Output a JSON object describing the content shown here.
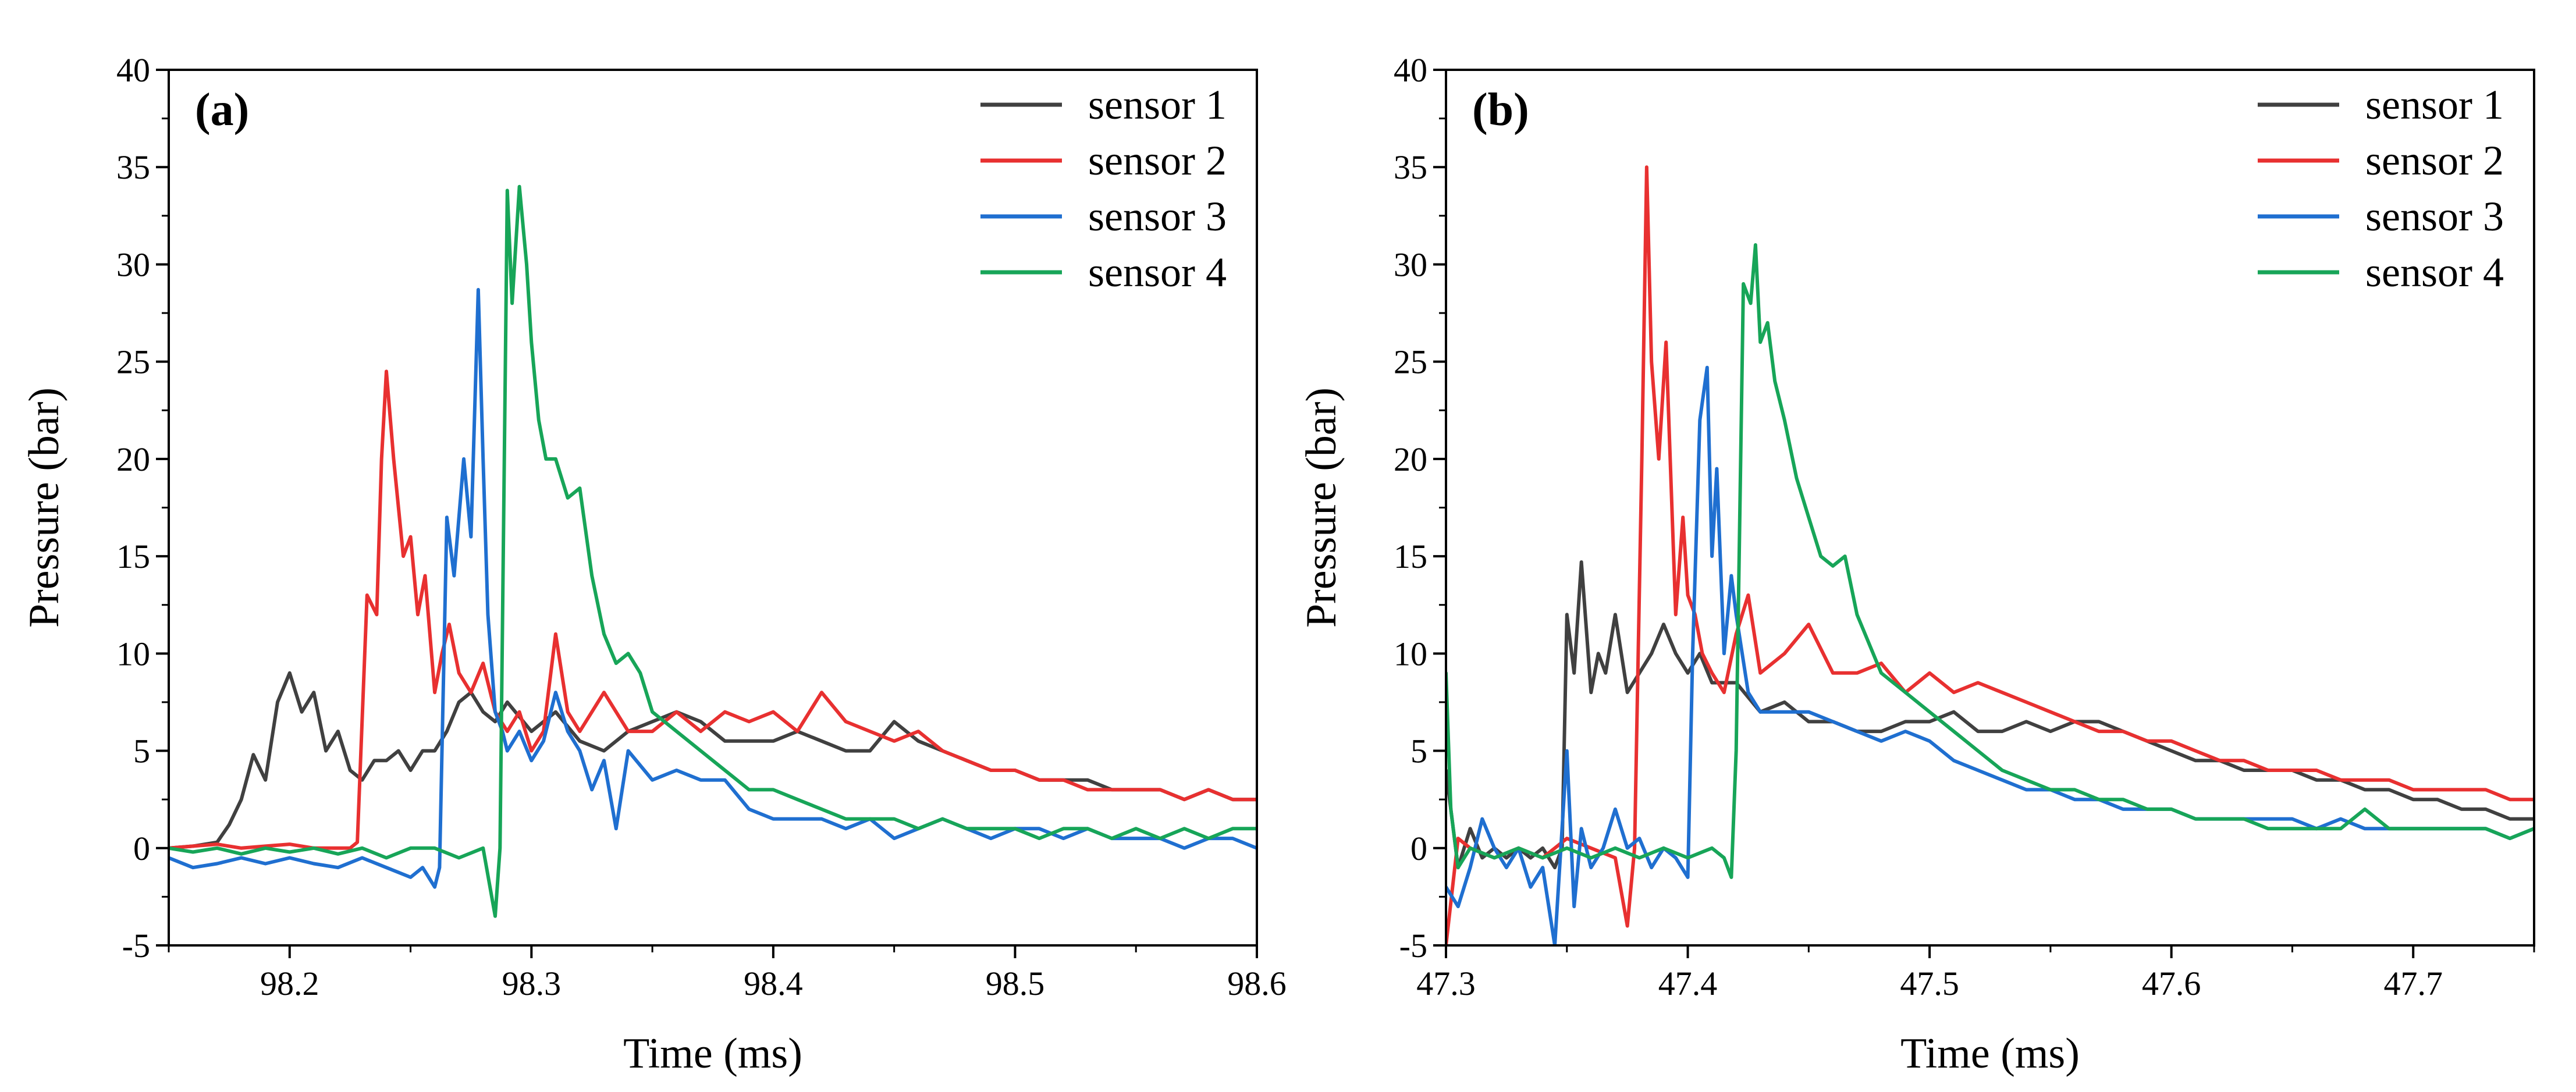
{
  "chart_data": [
    {
      "type": "line",
      "panel_label": "(a)",
      "xlabel": "Time (ms)",
      "ylabel": "Pressure (bar)",
      "xlim": [
        98.15,
        98.6
      ],
      "ylim": [
        -5,
        40
      ],
      "xticks": [
        98.2,
        98.3,
        98.4,
        98.5,
        98.6
      ],
      "xtick_labels": [
        "98.2",
        "98.3",
        "98.4",
        "98.5",
        "98.6"
      ],
      "yticks": [
        -5,
        0,
        5,
        10,
        15,
        20,
        25,
        30,
        35,
        40
      ],
      "ytick_labels": [
        "-5",
        "0",
        "5",
        "10",
        "15",
        "20",
        "25",
        "30",
        "35",
        "40"
      ],
      "legend_position": "top-right",
      "grid": false,
      "series": [
        {
          "name": "sensor 1",
          "color": "#404040",
          "x": [
            98.15,
            98.16,
            98.17,
            98.175,
            98.18,
            98.185,
            98.19,
            98.195,
            98.2,
            98.205,
            98.21,
            98.215,
            98.22,
            98.225,
            98.23,
            98.235,
            98.24,
            98.245,
            98.25,
            98.255,
            98.26,
            98.265,
            98.27,
            98.275,
            98.28,
            98.285,
            98.29,
            98.3,
            98.31,
            98.32,
            98.33,
            98.34,
            98.35,
            98.36,
            98.37,
            98.38,
            98.39,
            98.4,
            98.41,
            98.42,
            98.43,
            98.44,
            98.45,
            98.46,
            98.47,
            98.48,
            98.49,
            98.5,
            98.51,
            98.52,
            98.53,
            98.54,
            98.55,
            98.56,
            98.57,
            98.58,
            98.59,
            98.6
          ],
          "y": [
            0,
            0.1,
            0.3,
            1.2,
            2.5,
            4.8,
            3.5,
            7.5,
            9,
            7,
            8,
            5,
            6,
            4,
            3.5,
            4.5,
            4.5,
            5,
            4,
            5,
            5,
            6,
            7.5,
            8,
            7,
            6.5,
            7.5,
            6,
            7,
            5.5,
            5,
            6,
            6.5,
            7,
            6.5,
            5.5,
            5.5,
            5.5,
            6,
            5.5,
            5,
            5,
            6.5,
            5.5,
            5,
            4.5,
            4,
            4,
            3.5,
            3.5,
            3.5,
            3,
            3,
            3,
            2.5,
            3,
            2.5,
            2.5
          ]
        },
        {
          "name": "sensor 2",
          "color": "#e83030",
          "x": [
            98.15,
            98.16,
            98.17,
            98.18,
            98.19,
            98.2,
            98.21,
            98.22,
            98.225,
            98.228,
            98.232,
            98.236,
            98.238,
            98.24,
            98.243,
            98.247,
            98.25,
            98.253,
            98.256,
            98.26,
            98.263,
            98.266,
            98.27,
            98.275,
            98.28,
            98.285,
            98.29,
            98.295,
            98.3,
            98.305,
            98.31,
            98.315,
            98.32,
            98.33,
            98.34,
            98.35,
            98.36,
            98.37,
            98.38,
            98.39,
            98.4,
            98.41,
            98.42,
            98.43,
            98.44,
            98.45,
            98.46,
            98.47,
            98.48,
            98.49,
            98.5,
            98.51,
            98.52,
            98.53,
            98.54,
            98.55,
            98.56,
            98.57,
            98.58,
            98.59,
            98.6
          ],
          "y": [
            0,
            0.1,
            0.2,
            0,
            0.1,
            0.2,
            0,
            0,
            0,
            0.3,
            13,
            12,
            20,
            24.5,
            20,
            15,
            16,
            12,
            14,
            8,
            10,
            11.5,
            9,
            8,
            9.5,
            7,
            6,
            7,
            5,
            6,
            11,
            7,
            6,
            8,
            6,
            6,
            7,
            6,
            7,
            6.5,
            7,
            6,
            8,
            6.5,
            6,
            5.5,
            6,
            5,
            4.5,
            4,
            4,
            3.5,
            3.5,
            3,
            3,
            3,
            3,
            2.5,
            3,
            2.5,
            2.5
          ]
        },
        {
          "name": "sensor 3",
          "color": "#1f6fd0",
          "x": [
            98.15,
            98.16,
            98.17,
            98.18,
            98.19,
            98.2,
            98.21,
            98.22,
            98.23,
            98.24,
            98.25,
            98.255,
            98.26,
            98.262,
            98.265,
            98.268,
            98.27,
            98.272,
            98.275,
            98.278,
            98.28,
            98.282,
            98.285,
            98.288,
            98.29,
            98.295,
            98.3,
            98.305,
            98.31,
            98.315,
            98.32,
            98.325,
            98.33,
            98.335,
            98.34,
            98.35,
            98.36,
            98.37,
            98.38,
            98.39,
            98.4,
            98.41,
            98.42,
            98.43,
            98.44,
            98.45,
            98.46,
            98.47,
            98.48,
            98.49,
            98.5,
            98.51,
            98.52,
            98.53,
            98.54,
            98.55,
            98.56,
            98.57,
            98.58,
            98.59,
            98.6
          ],
          "y": [
            -0.5,
            -1,
            -0.8,
            -0.5,
            -0.8,
            -0.5,
            -0.8,
            -1,
            -0.5,
            -1,
            -1.5,
            -1,
            -2,
            -1,
            17,
            14,
            17,
            20,
            16,
            28.7,
            20,
            12,
            7,
            6,
            5,
            6,
            4.5,
            5.5,
            8,
            6,
            5,
            3,
            4.5,
            1,
            5,
            3.5,
            4,
            3.5,
            3.5,
            2,
            1.5,
            1.5,
            1.5,
            1,
            1.5,
            0.5,
            1,
            1.5,
            1,
            0.5,
            1,
            1,
            0.5,
            1,
            0.5,
            0.5,
            0.5,
            0,
            0.5,
            0.5,
            0
          ]
        },
        {
          "name": "sensor 4",
          "color": "#17a558",
          "x": [
            98.15,
            98.16,
            98.17,
            98.18,
            98.19,
            98.2,
            98.21,
            98.22,
            98.23,
            98.24,
            98.25,
            98.26,
            98.27,
            98.28,
            98.285,
            98.287,
            98.29,
            98.292,
            98.295,
            98.298,
            98.3,
            98.303,
            98.306,
            98.31,
            98.315,
            98.32,
            98.325,
            98.33,
            98.335,
            98.34,
            98.345,
            98.35,
            98.36,
            98.37,
            98.38,
            98.39,
            98.4,
            98.41,
            98.42,
            98.43,
            98.44,
            98.45,
            98.46,
            98.47,
            98.48,
            98.49,
            98.5,
            98.51,
            98.52,
            98.53,
            98.54,
            98.55,
            98.56,
            98.57,
            98.58,
            98.59,
            98.6
          ],
          "y": [
            0,
            -0.2,
            0,
            -0.3,
            0,
            -0.2,
            0,
            -0.3,
            0,
            -0.5,
            0,
            0,
            -0.5,
            0,
            -3.5,
            0,
            33.8,
            28,
            34,
            30,
            26,
            22,
            20,
            20,
            18,
            18.5,
            14,
            11,
            9.5,
            10,
            9,
            7,
            6,
            5,
            4,
            3,
            3,
            2.5,
            2,
            1.5,
            1.5,
            1.5,
            1,
            1.5,
            1,
            1,
            1,
            0.5,
            1,
            1,
            0.5,
            1,
            0.5,
            1,
            0.5,
            1,
            1
          ]
        }
      ]
    },
    {
      "type": "line",
      "panel_label": "(b)",
      "xlabel": "Time (ms)",
      "ylabel": "Pressure (bar)",
      "xlim": [
        47.3,
        47.75
      ],
      "ylim": [
        -5,
        40
      ],
      "xticks": [
        47.3,
        47.4,
        47.5,
        47.6,
        47.7
      ],
      "xtick_labels": [
        "47.3",
        "47.4",
        "47.5",
        "47.6",
        "47.7"
      ],
      "yticks": [
        -5,
        0,
        5,
        10,
        15,
        20,
        25,
        30,
        35,
        40
      ],
      "ytick_labels": [
        "-5",
        "0",
        "5",
        "10",
        "15",
        "20",
        "25",
        "30",
        "35",
        "40"
      ],
      "legend_position": "top-right",
      "grid": false,
      "series": [
        {
          "name": "sensor 1",
          "color": "#404040",
          "x": [
            47.3,
            47.305,
            47.31,
            47.315,
            47.32,
            47.325,
            47.33,
            47.335,
            47.34,
            47.345,
            47.348,
            47.35,
            47.353,
            47.356,
            47.36,
            47.363,
            47.366,
            47.37,
            47.375,
            47.38,
            47.385,
            47.39,
            47.395,
            47.4,
            47.405,
            47.41,
            47.42,
            47.43,
            47.44,
            47.45,
            47.46,
            47.47,
            47.48,
            47.49,
            47.5,
            47.51,
            47.52,
            47.53,
            47.54,
            47.55,
            47.56,
            47.57,
            47.58,
            47.59,
            47.6,
            47.61,
            47.62,
            47.63,
            47.64,
            47.65,
            47.66,
            47.67,
            47.68,
            47.69,
            47.7,
            47.71,
            47.72,
            47.73,
            47.74,
            47.75
          ],
          "y": [
            4,
            -1,
            1,
            -0.5,
            0,
            -0.5,
            0,
            -0.5,
            0,
            -1,
            0,
            12,
            9,
            14.7,
            8,
            10,
            9,
            12,
            8,
            9,
            10,
            11.5,
            10,
            9,
            10,
            8.5,
            8.5,
            7,
            7.5,
            6.5,
            6.5,
            6,
            6,
            6.5,
            6.5,
            7,
            6,
            6,
            6.5,
            6,
            6.5,
            6.5,
            6,
            5.5,
            5,
            4.5,
            4.5,
            4,
            4,
            4,
            3.5,
            3.5,
            3,
            3,
            2.5,
            2.5,
            2,
            2,
            1.5,
            1.5
          ]
        },
        {
          "name": "sensor 2",
          "color": "#e83030",
          "x": [
            47.3,
            47.305,
            47.31,
            47.32,
            47.33,
            47.34,
            47.35,
            47.36,
            47.37,
            47.375,
            47.378,
            47.381,
            47.383,
            47.385,
            47.388,
            47.391,
            47.395,
            47.398,
            47.4,
            47.403,
            47.406,
            47.41,
            47.415,
            47.42,
            47.425,
            47.43,
            47.44,
            47.45,
            47.46,
            47.47,
            47.48,
            47.49,
            47.5,
            47.51,
            47.52,
            47.53,
            47.54,
            47.55,
            47.56,
            47.57,
            47.58,
            47.59,
            47.6,
            47.61,
            47.62,
            47.63,
            47.64,
            47.65,
            47.66,
            47.67,
            47.68,
            47.69,
            47.7,
            47.71,
            47.72,
            47.73,
            47.74,
            47.75
          ],
          "y": [
            -5,
            0.5,
            0,
            -0.5,
            0,
            -0.5,
            0.5,
            0,
            -0.5,
            -4,
            0,
            20,
            35,
            25,
            20,
            26,
            12,
            17,
            13,
            12,
            10,
            9,
            8,
            11,
            13,
            9,
            10,
            11.5,
            9,
            9,
            9.5,
            8,
            9,
            8,
            8.5,
            8,
            7.5,
            7,
            6.5,
            6,
            6,
            5.5,
            5.5,
            5,
            4.5,
            4.5,
            4,
            4,
            4,
            3.5,
            3.5,
            3.5,
            3,
            3,
            3,
            3,
            2.5,
            2.5
          ]
        },
        {
          "name": "sensor 3",
          "color": "#1f6fd0",
          "x": [
            47.3,
            47.305,
            47.31,
            47.315,
            47.32,
            47.325,
            47.33,
            47.335,
            47.34,
            47.345,
            47.35,
            47.353,
            47.356,
            47.36,
            47.365,
            47.37,
            47.375,
            47.38,
            47.385,
            47.39,
            47.395,
            47.4,
            47.402,
            47.405,
            47.408,
            47.41,
            47.412,
            47.415,
            47.418,
            47.42,
            47.425,
            47.43,
            47.44,
            47.45,
            47.46,
            47.47,
            47.48,
            47.49,
            47.5,
            47.51,
            47.52,
            47.53,
            47.54,
            47.55,
            47.56,
            47.57,
            47.58,
            47.59,
            47.6,
            47.61,
            47.62,
            47.63,
            47.64,
            47.65,
            47.66,
            47.67,
            47.68,
            47.69,
            47.7,
            47.71,
            47.72,
            47.73,
            47.74,
            47.75
          ],
          "y": [
            -2,
            -3,
            -1,
            1.5,
            0,
            -1,
            0,
            -2,
            -1,
            -5,
            5,
            -3,
            1,
            -1,
            0,
            2,
            0,
            0.5,
            -1,
            0,
            -0.5,
            -1.5,
            10,
            22,
            24.7,
            15,
            19.5,
            10,
            14,
            12,
            8,
            7,
            7,
            7,
            6.5,
            6,
            5.5,
            6,
            5.5,
            4.5,
            4,
            3.5,
            3,
            3,
            2.5,
            2.5,
            2,
            2,
            2,
            1.5,
            1.5,
            1.5,
            1.5,
            1.5,
            1,
            1.5,
            1,
            1,
            1,
            1,
            1,
            1,
            0.5,
            1
          ]
        },
        {
          "name": "sensor 4",
          "color": "#17a558",
          "x": [
            47.3,
            47.302,
            47.305,
            47.31,
            47.32,
            47.33,
            47.34,
            47.35,
            47.36,
            47.37,
            47.38,
            47.39,
            47.4,
            47.41,
            47.415,
            47.418,
            47.42,
            47.423,
            47.426,
            47.428,
            47.43,
            47.433,
            47.436,
            47.44,
            47.445,
            47.45,
            47.455,
            47.46,
            47.465,
            47.47,
            47.48,
            47.49,
            47.5,
            47.51,
            47.52,
            47.53,
            47.54,
            47.55,
            47.56,
            47.57,
            47.58,
            47.59,
            47.6,
            47.61,
            47.62,
            47.63,
            47.64,
            47.65,
            47.66,
            47.67,
            47.68,
            47.69,
            47.7,
            47.71,
            47.72,
            47.73,
            47.74,
            47.75
          ],
          "y": [
            9,
            2,
            -1,
            0,
            -0.5,
            0,
            -0.5,
            0,
            -0.5,
            0,
            -0.5,
            0,
            -0.5,
            0,
            -0.5,
            -1.5,
            5,
            29,
            28,
            31,
            26,
            27,
            24,
            22,
            19,
            17,
            15,
            14.5,
            15,
            12,
            9,
            8,
            7,
            6,
            5,
            4,
            3.5,
            3,
            3,
            2.5,
            2.5,
            2,
            2,
            1.5,
            1.5,
            1.5,
            1,
            1,
            1,
            1,
            2,
            1,
            1,
            1,
            1,
            1,
            0.5,
            1
          ]
        }
      ]
    }
  ]
}
